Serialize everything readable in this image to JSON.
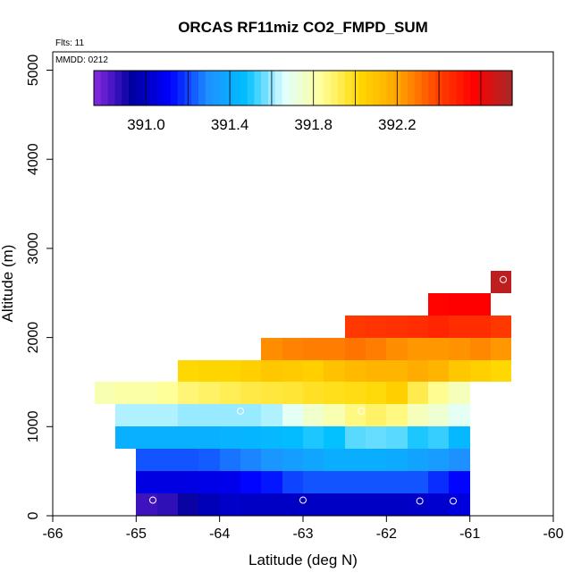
{
  "chart_data": {
    "type": "heatmap",
    "title": "ORCAS RF11miz CO2_FMPD_SUM",
    "subtitle_flights": "Flts: 11",
    "subtitle_date": "MMDD: 0212",
    "xlabel": "Latitude (deg N)",
    "ylabel": "Altitude (m)",
    "xlim": [
      -66,
      -60
    ],
    "ylim": [
      0,
      5200
    ],
    "x_ticks": [
      -66,
      -65,
      -64,
      -63,
      -62,
      -61,
      -60
    ],
    "y_ticks": [
      0,
      1000,
      2000,
      3000,
      4000,
      5000
    ],
    "cell_width_deg": 0.25,
    "cell_height_m": 250,
    "colorbar": {
      "range": [
        390.75,
        392.75
      ],
      "ticks": [
        391.0,
        391.4,
        391.8,
        392.2
      ],
      "tick_labels": [
        "391.0",
        "391.4",
        "391.8",
        "392.2"
      ],
      "colors": [
        "#8a2be2",
        "#0000a0",
        "#0000ff",
        "#1e90ff",
        "#00bfff",
        "#e0ffff",
        "#ffff99",
        "#ffd700",
        "#ffa500",
        "#ff4500",
        "#ff0000",
        "#a52a2a"
      ]
    },
    "rows": [
      {
        "alt": 0,
        "lat_start": -65.0,
        "values": [
          390.85,
          390.87,
          390.92,
          390.98,
          391.01,
          391.0,
          391.0,
          391.0,
          391.0,
          391.0,
          391.0,
          391.0,
          391.0,
          391.01,
          391.02,
          391.05
        ]
      },
      {
        "alt": 250,
        "lat_start": -65.0,
        "values": [
          391.06,
          391.06,
          391.06,
          391.07,
          391.08,
          391.12,
          391.14,
          391.2,
          391.22,
          391.22,
          391.22,
          391.22,
          391.22,
          391.22,
          391.17,
          391.12
        ]
      },
      {
        "alt": 500,
        "lat_start": -65.0,
        "values": [
          391.22,
          391.22,
          391.22,
          391.23,
          391.26,
          391.28,
          391.32,
          391.35,
          391.38,
          391.41,
          391.41,
          391.41,
          391.4,
          391.37,
          391.34,
          391.3
        ]
      },
      {
        "alt": 750,
        "lat_start": -65.25,
        "values": [
          391.42,
          391.42,
          391.42,
          391.42,
          391.42,
          391.43,
          391.44,
          391.45,
          391.46,
          391.5,
          391.48,
          391.55,
          391.56,
          391.55,
          391.5,
          391.52,
          391.45
        ]
      },
      {
        "alt": 1000,
        "lat_start": -65.25,
        "values": [
          391.62,
          391.62,
          391.62,
          391.6,
          391.6,
          391.6,
          391.6,
          391.62,
          391.68,
          391.75,
          391.8,
          391.87,
          391.9,
          391.87,
          391.78,
          391.74,
          391.68
        ]
      },
      {
        "alt": 1250,
        "lat_start": -65.5,
        "values": [
          391.8,
          391.82,
          391.82,
          391.84,
          391.88,
          391.9,
          391.92,
          391.94,
          391.95,
          391.96,
          391.98,
          391.99,
          392.0,
          392.01,
          392.05,
          391.93,
          391.85,
          391.78
        ]
      },
      {
        "alt": 1500,
        "lat_start": -64.5,
        "values": [
          392.02,
          392.03,
          392.03,
          392.05,
          392.08,
          392.07,
          392.05,
          392.1,
          392.13,
          392.15,
          392.15,
          392.18,
          392.15,
          392.08,
          392.05,
          392.02
        ]
      },
      {
        "alt": 1750,
        "lat_start": -63.5,
        "values": [
          392.25,
          392.27,
          392.28,
          392.28,
          392.3,
          392.28,
          392.25,
          392.23,
          392.23,
          392.24,
          392.26,
          392.23
        ]
      },
      {
        "alt": 2000,
        "lat_start": -62.5,
        "values": [
          392.42,
          392.43,
          392.44,
          392.45,
          392.47,
          392.45,
          392.45,
          392.42
        ]
      },
      {
        "alt": 2250,
        "lat_start": -61.5,
        "values": [
          392.56,
          392.57,
          392.57
        ]
      },
      {
        "alt": 2500,
        "lat_start": -60.75,
        "values": [
          392.7
        ]
      }
    ],
    "sample_points": [
      {
        "lat": -64.8,
        "alt": 175
      },
      {
        "lat": -63.0,
        "alt": 175
      },
      {
        "lat": -61.6,
        "alt": 165
      },
      {
        "lat": -61.2,
        "alt": 165
      },
      {
        "lat": -63.75,
        "alt": 1175
      },
      {
        "lat": -62.3,
        "alt": 1175
      },
      {
        "lat": -60.6,
        "alt": 2650
      }
    ]
  }
}
